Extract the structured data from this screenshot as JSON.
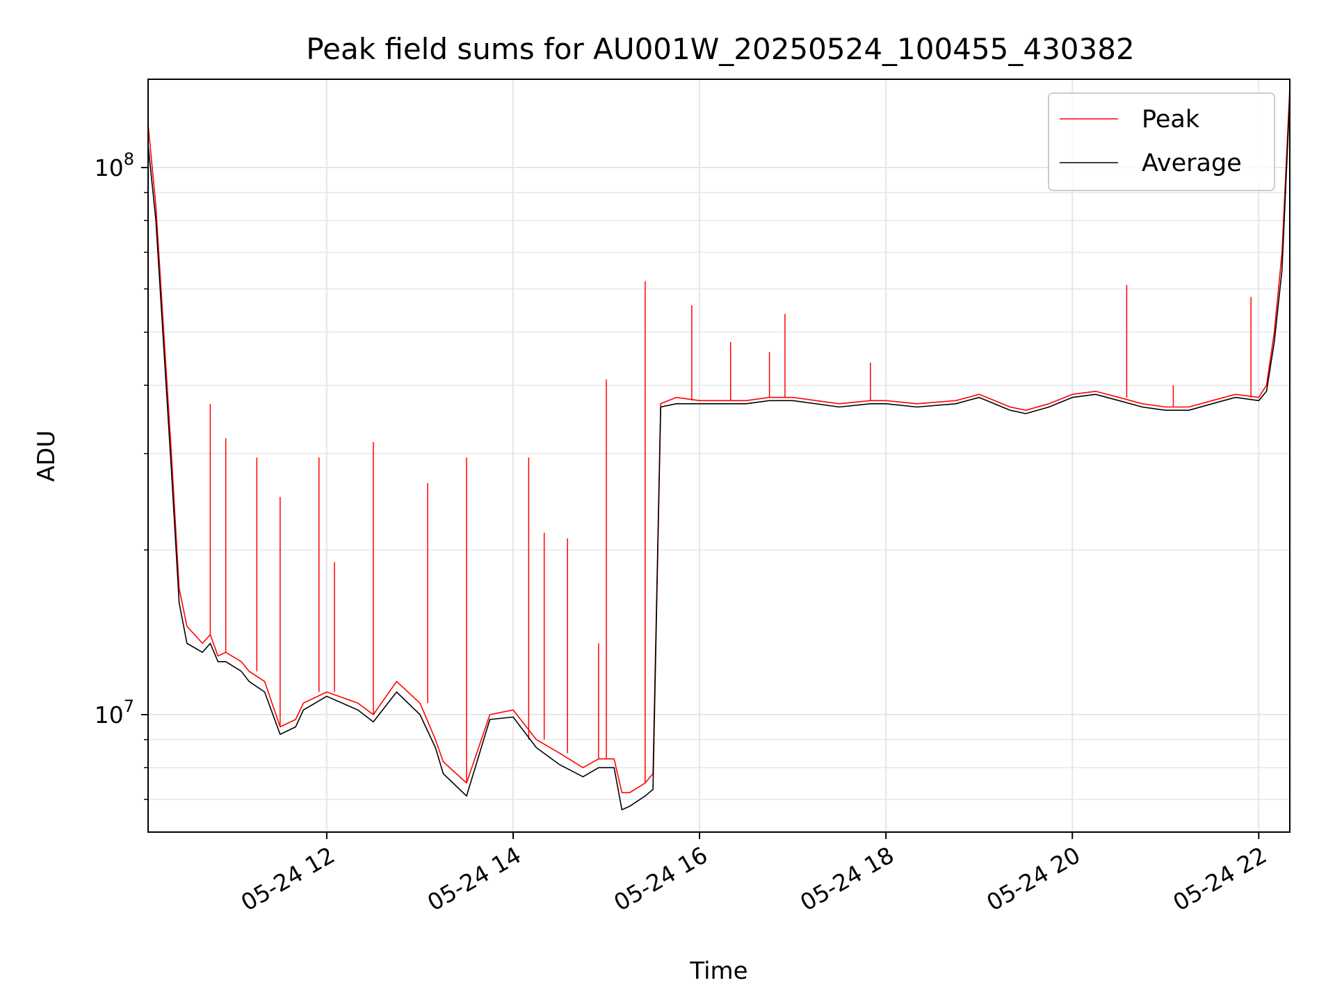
{
  "chart_data": {
    "type": "line",
    "title": "Peak field sums for AU001W_20250524_100455_430382",
    "xlabel": "Time",
    "ylabel": "ADU",
    "yscale": "log",
    "xlim": [
      "2025-05-24 10:05",
      "2025-05-24 22:20"
    ],
    "ylim": [
      6100000,
      145000000
    ],
    "grid": true,
    "legend_position": "top-right",
    "x_ticks": [
      {
        "value": "2025-05-24 12:00",
        "label": "05-24 12"
      },
      {
        "value": "2025-05-24 14:00",
        "label": "05-24 14"
      },
      {
        "value": "2025-05-24 16:00",
        "label": "05-24 16"
      },
      {
        "value": "2025-05-24 18:00",
        "label": "05-24 18"
      },
      {
        "value": "2025-05-24 20:00",
        "label": "05-24 20"
      },
      {
        "value": "2025-05-24 22:00",
        "label": "05-24 22"
      }
    ],
    "y_major_ticks": [
      {
        "value": 10000000,
        "base": "10",
        "exp": "7"
      },
      {
        "value": 100000000,
        "base": "10",
        "exp": "8"
      }
    ],
    "y_minor_ticks": [
      7000000,
      8000000,
      9000000,
      20000000,
      30000000,
      40000000,
      50000000,
      60000000,
      70000000,
      80000000,
      90000000
    ],
    "series": [
      {
        "name": "Peak",
        "color": "#ff0000",
        "x": [
          "2025-05-24 10:05",
          "2025-05-24 10:10",
          "2025-05-24 10:20",
          "2025-05-24 10:25",
          "2025-05-24 10:30",
          "2025-05-24 10:40",
          "2025-05-24 10:45",
          "2025-05-24 10:50",
          "2025-05-24 10:55",
          "2025-05-24 11:05",
          "2025-05-24 11:10",
          "2025-05-24 11:20",
          "2025-05-24 11:30",
          "2025-05-24 11:40",
          "2025-05-24 11:45",
          "2025-05-24 12:00",
          "2025-05-24 12:20",
          "2025-05-24 12:30",
          "2025-05-24 12:45",
          "2025-05-24 13:00",
          "2025-05-24 13:10",
          "2025-05-24 13:15",
          "2025-05-24 13:30",
          "2025-05-24 13:45",
          "2025-05-24 14:00",
          "2025-05-24 14:15",
          "2025-05-24 14:30",
          "2025-05-24 14:45",
          "2025-05-24 14:55",
          "2025-05-24 15:05",
          "2025-05-24 15:10",
          "2025-05-24 15:15",
          "2025-05-24 15:25",
          "2025-05-24 15:30",
          "2025-05-24 15:35",
          "2025-05-24 15:45",
          "2025-05-24 16:00",
          "2025-05-24 16:30",
          "2025-05-24 16:45",
          "2025-05-24 17:00",
          "2025-05-24 17:30",
          "2025-05-24 17:50",
          "2025-05-24 18:00",
          "2025-05-24 18:20",
          "2025-05-24 18:45",
          "2025-05-24 19:00",
          "2025-05-24 19:20",
          "2025-05-24 19:30",
          "2025-05-24 19:45",
          "2025-05-24 20:00",
          "2025-05-24 20:15",
          "2025-05-24 20:30",
          "2025-05-24 20:45",
          "2025-05-24 21:00",
          "2025-05-24 21:15",
          "2025-05-24 21:30",
          "2025-05-24 21:45",
          "2025-05-24 22:00",
          "2025-05-24 22:05",
          "2025-05-24 22:10",
          "2025-05-24 22:15",
          "2025-05-24 22:20"
        ],
        "y": [
          120000000,
          85000000,
          30000000,
          17000000,
          14500000,
          13500000,
          14000000,
          12800000,
          13000000,
          12500000,
          12000000,
          11500000,
          9500000,
          9800000,
          10500000,
          11000000,
          10500000,
          10000000,
          11500000,
          10500000,
          9000000,
          8200000,
          7500000,
          10000000,
          10200000,
          9000000,
          8500000,
          8000000,
          8300000,
          8300000,
          7200000,
          7200000,
          7500000,
          7800000,
          37000000,
          38000000,
          37500000,
          37500000,
          38000000,
          38000000,
          37000000,
          37500000,
          37500000,
          37000000,
          37500000,
          38500000,
          36500000,
          36000000,
          37000000,
          38500000,
          39000000,
          38000000,
          37000000,
          36500000,
          36500000,
          37500000,
          38500000,
          38000000,
          40000000,
          50000000,
          70000000,
          140000000
        ]
      },
      {
        "name": "Average",
        "color": "#000000",
        "x": [
          "2025-05-24 10:05",
          "2025-05-24 10:10",
          "2025-05-24 10:20",
          "2025-05-24 10:25",
          "2025-05-24 10:30",
          "2025-05-24 10:40",
          "2025-05-24 10:45",
          "2025-05-24 10:50",
          "2025-05-24 10:55",
          "2025-05-24 11:05",
          "2025-05-24 11:10",
          "2025-05-24 11:20",
          "2025-05-24 11:30",
          "2025-05-24 11:40",
          "2025-05-24 11:45",
          "2025-05-24 12:00",
          "2025-05-24 12:20",
          "2025-05-24 12:30",
          "2025-05-24 12:45",
          "2025-05-24 13:00",
          "2025-05-24 13:10",
          "2025-05-24 13:15",
          "2025-05-24 13:30",
          "2025-05-24 13:45",
          "2025-05-24 14:00",
          "2025-05-24 14:15",
          "2025-05-24 14:30",
          "2025-05-24 14:45",
          "2025-05-24 14:55",
          "2025-05-24 15:05",
          "2025-05-24 15:10",
          "2025-05-24 15:15",
          "2025-05-24 15:25",
          "2025-05-24 15:30",
          "2025-05-24 15:35",
          "2025-05-24 15:45",
          "2025-05-24 16:00",
          "2025-05-24 16:30",
          "2025-05-24 16:45",
          "2025-05-24 17:00",
          "2025-05-24 17:30",
          "2025-05-24 17:50",
          "2025-05-24 18:00",
          "2025-05-24 18:20",
          "2025-05-24 18:45",
          "2025-05-24 19:00",
          "2025-05-24 19:20",
          "2025-05-24 19:30",
          "2025-05-24 19:45",
          "2025-05-24 20:00",
          "2025-05-24 20:15",
          "2025-05-24 20:30",
          "2025-05-24 20:45",
          "2025-05-24 21:00",
          "2025-05-24 21:15",
          "2025-05-24 21:30",
          "2025-05-24 21:45",
          "2025-05-24 22:00",
          "2025-05-24 22:05",
          "2025-05-24 22:10",
          "2025-05-24 22:15",
          "2025-05-24 22:20"
        ],
        "y": [
          110000000,
          80000000,
          28000000,
          16000000,
          13500000,
          13000000,
          13500000,
          12500000,
          12500000,
          12000000,
          11500000,
          11000000,
          9200000,
          9500000,
          10200000,
          10800000,
          10200000,
          9700000,
          11000000,
          10000000,
          8700000,
          7800000,
          7100000,
          9800000,
          9900000,
          8700000,
          8100000,
          7700000,
          8000000,
          8000000,
          6700000,
          6800000,
          7100000,
          7300000,
          36500000,
          37000000,
          37000000,
          37000000,
          37500000,
          37500000,
          36500000,
          37000000,
          37000000,
          36500000,
          37000000,
          38000000,
          36000000,
          35500000,
          36500000,
          38000000,
          38500000,
          37500000,
          36500000,
          36000000,
          36000000,
          37000000,
          38000000,
          37500000,
          39000000,
          48000000,
          65000000,
          135000000
        ]
      }
    ],
    "spikes": {
      "name": "Peak",
      "points": [
        {
          "x": "2025-05-24 10:45",
          "y": 37000000
        },
        {
          "x": "2025-05-24 10:55",
          "y": 32000000
        },
        {
          "x": "2025-05-24 11:15",
          "y": 29500000
        },
        {
          "x": "2025-05-24 11:30",
          "y": 25000000
        },
        {
          "x": "2025-05-24 11:55",
          "y": 29500000
        },
        {
          "x": "2025-05-24 12:05",
          "y": 19000000
        },
        {
          "x": "2025-05-24 12:30",
          "y": 31500000
        },
        {
          "x": "2025-05-24 13:05",
          "y": 26500000
        },
        {
          "x": "2025-05-24 13:30",
          "y": 29500000
        },
        {
          "x": "2025-05-24 14:10",
          "y": 29500000
        },
        {
          "x": "2025-05-24 14:20",
          "y": 21500000
        },
        {
          "x": "2025-05-24 14:35",
          "y": 21000000
        },
        {
          "x": "2025-05-24 14:55",
          "y": 13500000
        },
        {
          "x": "2025-05-24 15:00",
          "y": 41000000
        },
        {
          "x": "2025-05-24 15:25",
          "y": 62000000
        },
        {
          "x": "2025-05-24 15:55",
          "y": 56000000
        },
        {
          "x": "2025-05-24 16:20",
          "y": 48000000
        },
        {
          "x": "2025-05-24 16:45",
          "y": 46000000
        },
        {
          "x": "2025-05-24 16:55",
          "y": 54000000
        },
        {
          "x": "2025-05-24 17:50",
          "y": 44000000
        },
        {
          "x": "2025-05-24 20:35",
          "y": 61000000
        },
        {
          "x": "2025-05-24 21:05",
          "y": 40000000
        },
        {
          "x": "2025-05-24 21:55",
          "y": 58000000
        }
      ]
    }
  }
}
